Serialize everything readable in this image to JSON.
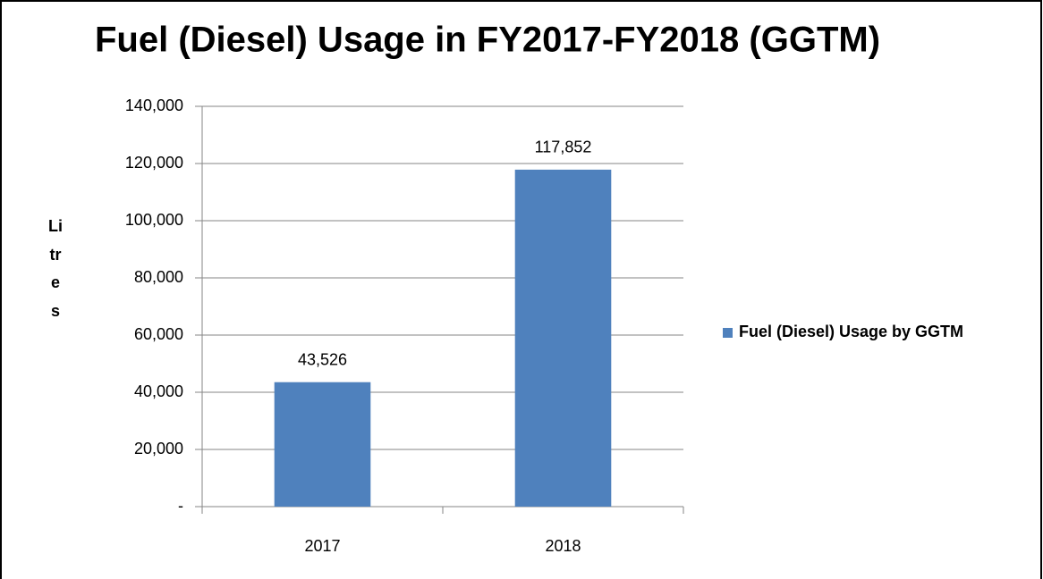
{
  "chart_data": {
    "type": "bar",
    "title": "Fuel (Diesel) Usage in FY2017-FY2018 (GGTM)",
    "y_label": "Litres",
    "categories": [
      "2017",
      "2018"
    ],
    "series": [
      {
        "name": "Fuel (Diesel) Usage by GGTM",
        "color": "#4f81bd",
        "values": [
          43526,
          117852
        ],
        "value_labels": [
          "43,526",
          "117,852"
        ]
      }
    ],
    "ylim": [
      0,
      140000
    ],
    "yticks": [
      {
        "value": 0,
        "label": "-"
      },
      {
        "value": 20000,
        "label": "20,000"
      },
      {
        "value": 40000,
        "label": "40,000"
      },
      {
        "value": 60000,
        "label": "60,000"
      },
      {
        "value": 80000,
        "label": "80,000"
      },
      {
        "value": 100000,
        "label": "100,000"
      },
      {
        "value": 120000,
        "label": "120,000"
      },
      {
        "value": 140000,
        "label": "140,000"
      }
    ],
    "grid": true,
    "legend": "right"
  }
}
